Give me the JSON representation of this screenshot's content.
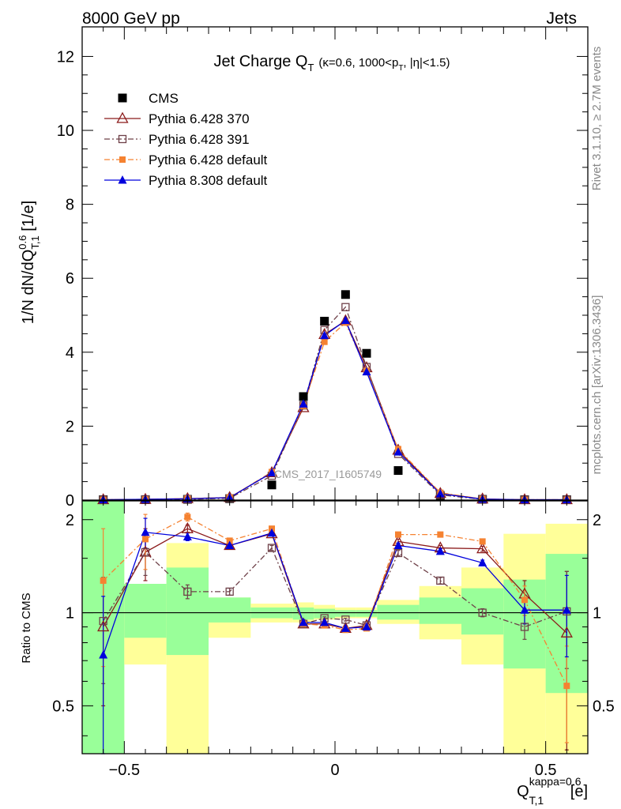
{
  "header": {
    "energy_label": "8000 GeV pp",
    "category_label": "Jets"
  },
  "side_labels": {
    "rivet": "Rivet 3.1.10, ≥ 2.7M events",
    "mcplots": "mcplots.cern.ch [arXiv:1306.3436]"
  },
  "watermark": "CMS_2017_I1605749",
  "chart_data": [
    {
      "type": "scatter",
      "panel": "main",
      "title_main": "Jet Charge Q",
      "title_sub_T": "T",
      "title_detail": "(κ=0.6, 1000<p",
      "title_detail_T": "T",
      "title_detail_end": ", |η|<1.5)",
      "ylabel": "1/N dN/dQ",
      "ylabel_sup": "0.6",
      "ylabel_sub": "T,1",
      "ylabel_unit": " [1/e]",
      "xlim": [
        -0.6,
        0.6
      ],
      "ylim": [
        0,
        12.8
      ],
      "yticks": [
        0,
        2,
        4,
        6,
        8,
        10,
        12
      ],
      "ytick_labels": [
        "0",
        "2",
        "4",
        "6",
        "8",
        "10",
        "12"
      ],
      "legend_position": "top-left",
      "x": [
        -0.55,
        -0.45,
        -0.35,
        -0.25,
        -0.15,
        -0.075,
        -0.025,
        0.025,
        0.075,
        0.15,
        0.25,
        0.35,
        0.45,
        0.55
      ],
      "series": [
        {
          "name": "CMS",
          "color": "#000000",
          "marker": "square-filled",
          "line": "none",
          "values": [
            0.01,
            0.012,
            0.02,
            0.04,
            0.41,
            2.8,
            4.84,
            5.56,
            3.97,
            0.8,
            0.11,
            0.02,
            0.01,
            0.01
          ]
        },
        {
          "name": "Pythia 6.428 370",
          "color": "#8b1a1a",
          "marker": "triangle-open",
          "line": "solid",
          "values": [
            0.01,
            0.02,
            0.04,
            0.07,
            0.74,
            2.5,
            4.48,
            4.85,
            3.58,
            1.35,
            0.18,
            0.03,
            0.01,
            0.01
          ]
        },
        {
          "name": "Pythia 6.428 391",
          "color": "#6e4048",
          "marker": "square-open",
          "line": "dashdot",
          "values": [
            0.01,
            0.02,
            0.02,
            0.05,
            0.66,
            2.56,
            4.6,
            5.22,
            3.6,
            1.25,
            0.14,
            0.02,
            0.01,
            0.01
          ]
        },
        {
          "name": "Pythia 6.428 default",
          "color": "#f58231",
          "marker": "square-filled-small",
          "line": "dashdot",
          "values": [
            0.01,
            0.02,
            0.04,
            0.07,
            0.76,
            2.55,
            4.28,
            4.8,
            3.5,
            1.38,
            0.2,
            0.03,
            0.01,
            0.01
          ]
        },
        {
          "name": "Pythia 8.308 default",
          "color": "#0000dd",
          "marker": "triangle-filled",
          "line": "solid",
          "values": [
            0.01,
            0.022,
            0.035,
            0.066,
            0.74,
            2.6,
            4.45,
            4.86,
            3.47,
            1.3,
            0.17,
            0.025,
            0.01,
            0.01
          ]
        }
      ]
    },
    {
      "type": "scatter",
      "panel": "ratio",
      "ylabel": "Ratio to CMS",
      "xlabel": "Q",
      "xlabel_sup": "kappa=0.6",
      "xlabel_sub": "T,1",
      "xlabel_unit": " [e]",
      "xlim": [
        -0.6,
        0.6
      ],
      "ylim": [
        0.35,
        2.3
      ],
      "reference_line": 1,
      "yticks": [
        0.5,
        1,
        2
      ],
      "ytick_labels": [
        "0.5",
        "1",
        "2"
      ],
      "xticks": [
        -0.5,
        0,
        0.5
      ],
      "xtick_labels": [
        "−0.5",
        "0",
        "0.5"
      ],
      "bins": [
        {
          "lo": -0.6,
          "hi": -0.5,
          "green": [
            0.35,
            2.3
          ],
          "yellow": [
            0.35,
            2.3
          ]
        },
        {
          "lo": -0.5,
          "hi": -0.4,
          "green": [
            0.83,
            1.24
          ],
          "yellow": [
            0.68,
            1.24
          ]
        },
        {
          "lo": -0.4,
          "hi": -0.3,
          "green": [
            0.73,
            1.4
          ],
          "yellow": [
            0.35,
            1.68
          ]
        },
        {
          "lo": -0.3,
          "hi": -0.2,
          "green": [
            0.93,
            1.12
          ],
          "yellow": [
            0.83,
            1.12
          ]
        },
        {
          "lo": -0.2,
          "hi": -0.1,
          "green": [
            0.96,
            1.04
          ],
          "yellow": [
            0.93,
            1.07
          ]
        },
        {
          "lo": -0.1,
          "hi": -0.05,
          "green": [
            0.95,
            1.04
          ],
          "yellow": [
            0.93,
            1.08
          ]
        },
        {
          "lo": -0.05,
          "hi": 0,
          "green": [
            0.96,
            1.03
          ],
          "yellow": [
            0.95,
            1.06
          ]
        },
        {
          "lo": 0,
          "hi": 0.05,
          "green": [
            0.97,
            1.02
          ],
          "yellow": [
            0.96,
            1.04
          ]
        },
        {
          "lo": 0.05,
          "hi": 0.1,
          "green": [
            0.97,
            1.02
          ],
          "yellow": [
            0.96,
            1.04
          ]
        },
        {
          "lo": 0.1,
          "hi": 0.2,
          "green": [
            0.95,
            1.06
          ],
          "yellow": [
            0.92,
            1.1
          ]
        },
        {
          "lo": 0.2,
          "hi": 0.3,
          "green": [
            0.92,
            1.12
          ],
          "yellow": [
            0.82,
            1.22
          ]
        },
        {
          "lo": 0.3,
          "hi": 0.4,
          "green": [
            0.85,
            1.2
          ],
          "yellow": [
            0.68,
            1.4
          ]
        },
        {
          "lo": 0.4,
          "hi": 0.5,
          "green": [
            0.66,
            1.28
          ],
          "yellow": [
            0.35,
            1.8
          ]
        },
        {
          "lo": 0.5,
          "hi": 0.6,
          "green": [
            0.55,
            1.55
          ],
          "yellow": [
            0.35,
            1.94
          ]
        }
      ],
      "x": [
        -0.55,
        -0.45,
        -0.35,
        -0.25,
        -0.15,
        -0.075,
        -0.025,
        0.025,
        0.075,
        0.15,
        0.25,
        0.35,
        0.45,
        0.55
      ],
      "series": [
        {
          "name": "Pythia 6.428 370",
          "color": "#8b1a1a",
          "marker": "triangle-open",
          "line": "solid",
          "values": [
            0.9,
            1.57,
            1.87,
            1.65,
            1.8,
            0.92,
            0.92,
            0.89,
            0.91,
            1.7,
            1.62,
            1.61,
            1.15,
            0.86
          ],
          "err": [
            0.4,
            0.3,
            0.05,
            0.03,
            0.03,
            0.02,
            0.01,
            0.01,
            0.01,
            0.03,
            0.03,
            0.03,
            0.12,
            0.5
          ]
        },
        {
          "name": "Pythia 6.428 391",
          "color": "#6e4048",
          "marker": "square-open",
          "line": "dashdot",
          "values": [
            0.94,
            1.57,
            1.17,
            1.17,
            1.62,
            0.92,
            0.96,
            0.95,
            0.91,
            1.56,
            1.27,
            1.0,
            0.9,
            1.01
          ],
          "err": [
            0.35,
            0.25,
            0.06,
            0.03,
            0.03,
            0.02,
            0.01,
            0.01,
            0.01,
            0.03,
            0.03,
            0.03,
            0.08,
            0.35
          ]
        },
        {
          "name": "Pythia 6.428 default",
          "color": "#f58231",
          "marker": "square-filled-small",
          "line": "dashdot",
          "values": [
            1.27,
            1.73,
            2.04,
            1.71,
            1.87,
            0.92,
            0.91,
            0.88,
            0.89,
            1.79,
            1.79,
            1.7,
            1.1,
            0.58
          ],
          "err": [
            0.6,
            0.35,
            0.06,
            0.03,
            0.03,
            0.02,
            0.01,
            0.01,
            0.01,
            0.03,
            0.03,
            0.03,
            0.12,
            0.2
          ]
        },
        {
          "name": "Pythia 8.308 default",
          "color": "#0000dd",
          "marker": "triangle-filled",
          "line": "solid",
          "values": [
            0.73,
            1.82,
            1.76,
            1.65,
            1.81,
            0.93,
            0.93,
            0.89,
            0.9,
            1.65,
            1.58,
            1.45,
            1.02,
            1.02
          ],
          "err": [
            0.4,
            0.2,
            0.05,
            0.03,
            0.03,
            0.02,
            0.01,
            0.01,
            0.01,
            0.03,
            0.03,
            0.03,
            0.1,
            0.3
          ]
        }
      ]
    }
  ]
}
